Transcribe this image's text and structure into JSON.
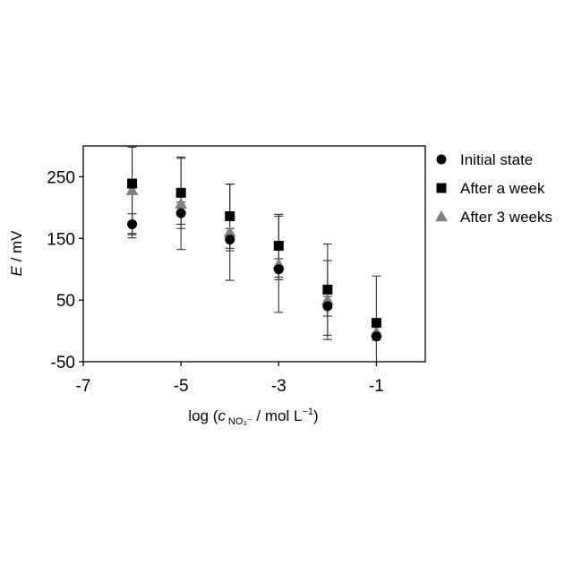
{
  "chart_data": {
    "type": "scatter",
    "xlabel": {
      "prefix": "log (",
      "var": "c",
      "subscript": "NO₃⁻",
      "suffix": " / mol L",
      "suffix_sup": "−1",
      "close": ")"
    },
    "ylabel": {
      "var": "E",
      "unit": " / mV"
    },
    "xlim": [
      -7,
      0
    ],
    "ylim": [
      -50,
      300
    ],
    "xticks": [
      -7,
      -5,
      -3,
      -1
    ],
    "yticks": [
      -50,
      50,
      150,
      250
    ],
    "grid": false,
    "legend_position": "right",
    "series": [
      {
        "name": "Initial state",
        "marker": "circle",
        "color": "#000000",
        "points": [
          {
            "x": -6,
            "y": 173,
            "err": 17
          },
          {
            "x": -5,
            "y": 191,
            "err": 18
          },
          {
            "x": -4,
            "y": 148,
            "err": 18
          },
          {
            "x": -3,
            "y": 100,
            "err": 17
          },
          {
            "x": -2,
            "y": 40,
            "err": 16
          },
          {
            "x": -1,
            "y": -9,
            "err": 6
          }
        ]
      },
      {
        "name": "After a week",
        "marker": "square",
        "color": "#000000",
        "points": [
          {
            "x": -6,
            "y": 239,
            "err": 88
          },
          {
            "x": -5,
            "y": 224,
            "err": 58
          },
          {
            "x": -4,
            "y": 186,
            "err": 52
          },
          {
            "x": -3,
            "y": 138,
            "err": 51
          },
          {
            "x": -2,
            "y": 67,
            "err": 74
          },
          {
            "x": -1,
            "y": 13,
            "err": 76
          }
        ]
      },
      {
        "name": "After 3 weeks",
        "marker": "triangle",
        "color": "#808080",
        "points": [
          {
            "x": -6,
            "y": 228,
            "err": 70
          },
          {
            "x": -5,
            "y": 206,
            "err": 74
          },
          {
            "x": -4,
            "y": 160,
            "err": 78
          },
          {
            "x": -3,
            "y": 108,
            "err": 78
          },
          {
            "x": -2,
            "y": 50,
            "err": 64
          },
          {
            "x": -1,
            "y": -2,
            "err": 8
          }
        ]
      }
    ]
  }
}
